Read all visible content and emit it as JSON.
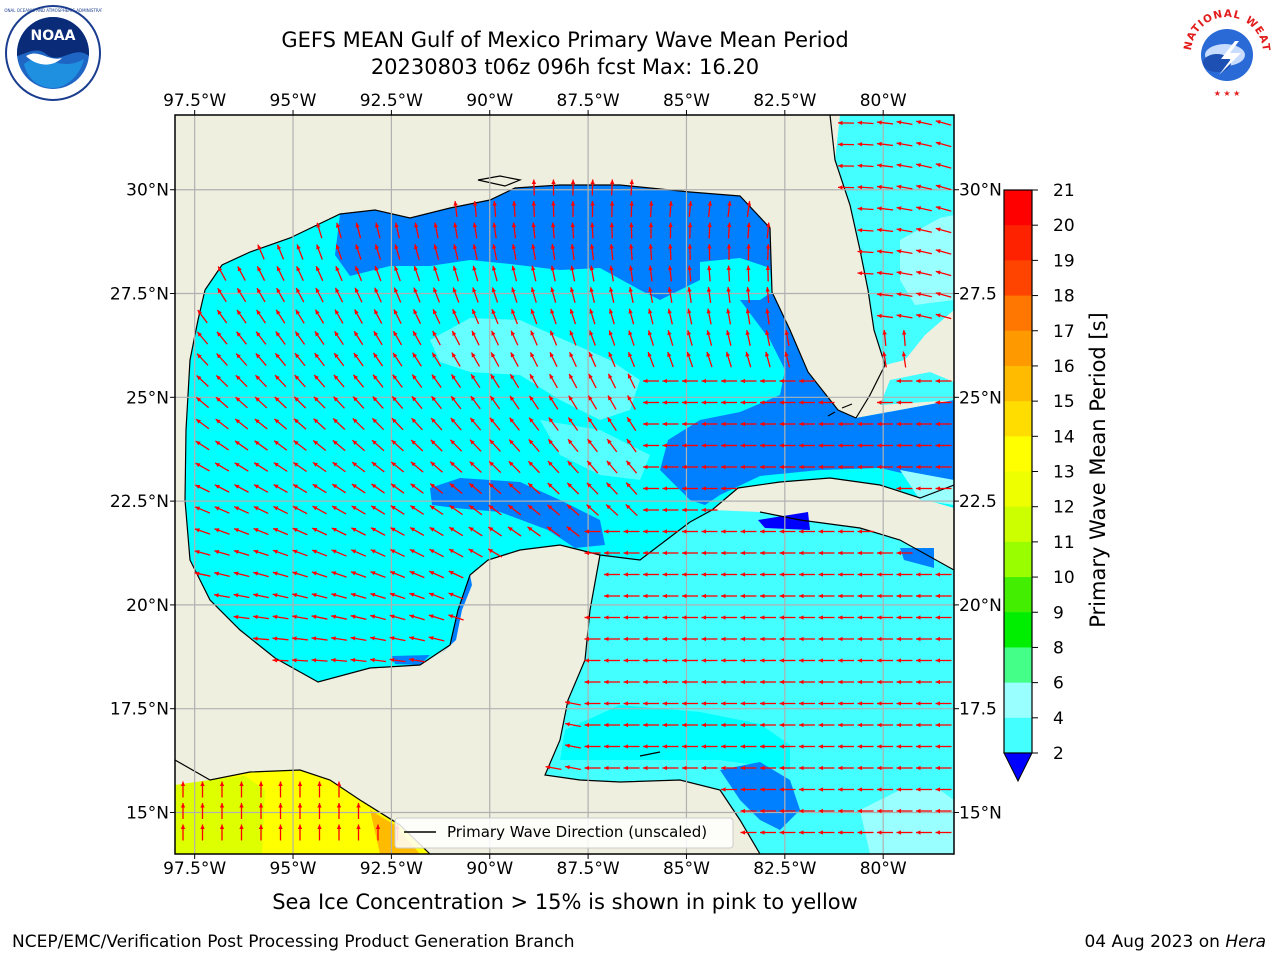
{
  "header": {
    "title_line1": "GEFS MEAN Gulf of Mexico Primary Wave Mean Period",
    "title_line2": "20230803 t06z 096h fcst   Max: 16.20"
  },
  "logos": {
    "noara": "noaa-logo",
    "nws": "nws-logo",
    "nws_text": "NATIONAL WEATHER SERVICE",
    "noaa_text": "NOAA"
  },
  "map": {
    "lon_labels": [
      "97.5°W",
      "95°W",
      "92.5°W",
      "90°W",
      "87.5°W",
      "85°W",
      "82.5°W",
      "80°W"
    ],
    "lon_values": [
      -97.5,
      -95,
      -92.5,
      -90,
      -87.5,
      -85,
      -82.5,
      -80
    ],
    "lat_labels_left": [
      "30°N",
      "27.5°N",
      "25°N",
      "22.5°N",
      "20°N",
      "17.5°N",
      "15°N"
    ],
    "lat_labels_right": [
      "30°N",
      "27.5",
      "25°N",
      "22.5",
      "20°N",
      "17.5",
      "15°N"
    ],
    "lat_values": [
      30,
      27.5,
      25,
      22.5,
      20,
      17.5,
      15
    ],
    "lon_range": [
      -98,
      -78.2
    ],
    "lat_range": [
      14,
      31.8
    ],
    "legend_label": "Primary Wave Direction (unscaled)",
    "colors": {
      "land": "#efefdf",
      "sea_4_6": "#00ffff",
      "sea_6_8": "#44ffff",
      "sea_2_4": "#0080ff",
      "sea_0_2": "#0000ff",
      "arrow": "#ff0000",
      "grid": "#b0b0b0"
    }
  },
  "colorbar": {
    "label": "Primary Wave Mean Period [s]",
    "ticks": [
      "21",
      "20",
      "19",
      "18",
      "17",
      "16",
      "15",
      "14",
      "13",
      "12",
      "11",
      "10",
      "9",
      "8",
      "6",
      "4",
      "2"
    ],
    "colors": [
      "#ff0000",
      "#ff2200",
      "#ff4400",
      "#ff7700",
      "#ff9900",
      "#ffbb00",
      "#ffdd00",
      "#ffff00",
      "#eeff00",
      "#ccff00",
      "#99ff00",
      "#44ee00",
      "#00ee00",
      "#44ff88",
      "#99ffff",
      "#44ffff",
      "#00ffff",
      "#0080ff"
    ],
    "extend_color": "#0000ff"
  },
  "caption": "Sea Ice Concentration > 15% is shown in pink to yellow",
  "footer": {
    "left": "NCEP/EMC/Verification Post Processing Product Generation Branch",
    "right_date": "04 Aug 2023 on ",
    "right_host": "Hera"
  }
}
